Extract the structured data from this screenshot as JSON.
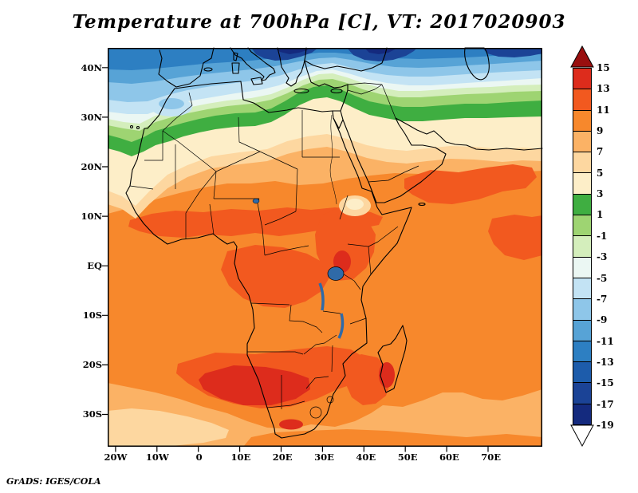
{
  "title": "Temperature at 700hPa [C], VT: 2017020903",
  "attribution": "GrADS: IGES/COLA",
  "axes": {
    "lat_labels": [
      "40N",
      "30N",
      "20N",
      "10N",
      "EQ",
      "10S",
      "20S",
      "30S"
    ],
    "lon_labels": [
      "20W",
      "10W",
      "0",
      "10E",
      "20E",
      "30E",
      "40E",
      "50E",
      "60E",
      "70E"
    ]
  },
  "colorbar": {
    "levels": [
      "15",
      "13",
      "11",
      "9",
      "7",
      "5",
      "3",
      "1",
      "-1",
      "-3",
      "-5",
      "-7",
      "-9",
      "-11",
      "-13",
      "-15",
      "-17",
      "-19"
    ],
    "segment_colors": [
      "#dd2c1c",
      "#f2591f",
      "#f7882c",
      "#fbb265",
      "#fdd7a0",
      "#fdeec8",
      "#3fae41",
      "#9ed472",
      "#d4eebc",
      "#ebf7f3",
      "#c3e3f4",
      "#8ec6e9",
      "#57a3d6",
      "#2d7fc2",
      "#1d5cab",
      "#1b4396",
      "#142a7e"
    ],
    "arrow_top_color": "#990f0f",
    "arrow_bottom_color": "#ffffff"
  },
  "map": {
    "water": "#2f6aa8"
  },
  "chart_data": {
    "type": "heatmap",
    "title": "Temperature at 700hPa [C], VT: 2017020903",
    "variable": "Temperature",
    "level": "700hPa",
    "units": "C",
    "valid_time": "2017020903",
    "lon_range": [
      -22,
      83
    ],
    "lat_range": [
      -36.5,
      44
    ],
    "contour_levels": [
      -19,
      -17,
      -15,
      -13,
      -11,
      -9,
      -7,
      -5,
      -3,
      -1,
      1,
      3,
      5,
      7,
      9,
      11,
      13,
      15
    ],
    "legend_position": "right",
    "sample_lons": [
      -20,
      -10,
      0,
      10,
      20,
      30,
      40,
      50,
      60,
      70
    ],
    "sample_lats": [
      40,
      35,
      30,
      25,
      20,
      15,
      10,
      5,
      0,
      -5,
      -10,
      -15,
      -20,
      -25,
      -30,
      -35
    ],
    "sampled_values": [
      [
        -7,
        -8,
        -9,
        -10,
        -9,
        -11,
        -12,
        -10,
        -11,
        -12
      ],
      [
        -4,
        -5,
        -6,
        -7,
        -6,
        -7,
        -8,
        -7,
        -8,
        -9
      ],
      [
        1,
        0,
        2,
        2,
        1,
        2,
        1,
        2,
        1,
        0
      ],
      [
        4,
        3,
        4,
        5,
        4,
        4,
        5,
        5,
        4,
        4
      ],
      [
        6,
        6,
        7,
        7,
        8,
        7,
        6,
        8,
        8,
        8
      ],
      [
        8,
        9,
        10,
        11,
        12,
        11,
        10,
        9,
        10,
        10
      ],
      [
        9,
        10,
        11,
        12,
        12,
        11,
        12,
        10,
        10,
        10
      ],
      [
        9,
        10,
        11,
        11,
        12,
        12,
        11,
        10,
        10,
        10
      ],
      [
        10,
        10,
        11,
        12,
        11,
        12,
        11,
        10,
        10,
        10
      ],
      [
        10,
        10,
        11,
        12,
        12,
        11,
        10,
        10,
        10,
        10
      ],
      [
        9,
        10,
        11,
        12,
        12,
        11,
        10,
        11,
        10,
        10
      ],
      [
        9,
        10,
        12,
        13,
        13,
        12,
        11,
        12,
        11,
        10
      ],
      [
        8,
        9,
        13,
        14,
        14,
        13,
        12,
        12,
        11,
        10
      ],
      [
        8,
        8,
        10,
        12,
        13,
        12,
        11,
        11,
        10,
        9
      ],
      [
        7,
        8,
        9,
        10,
        11,
        10,
        9,
        9,
        9,
        8
      ],
      [
        6,
        7,
        8,
        9,
        9,
        9,
        8,
        8,
        8,
        8
      ]
    ],
    "source": "GrADS: IGES/COLA"
  }
}
